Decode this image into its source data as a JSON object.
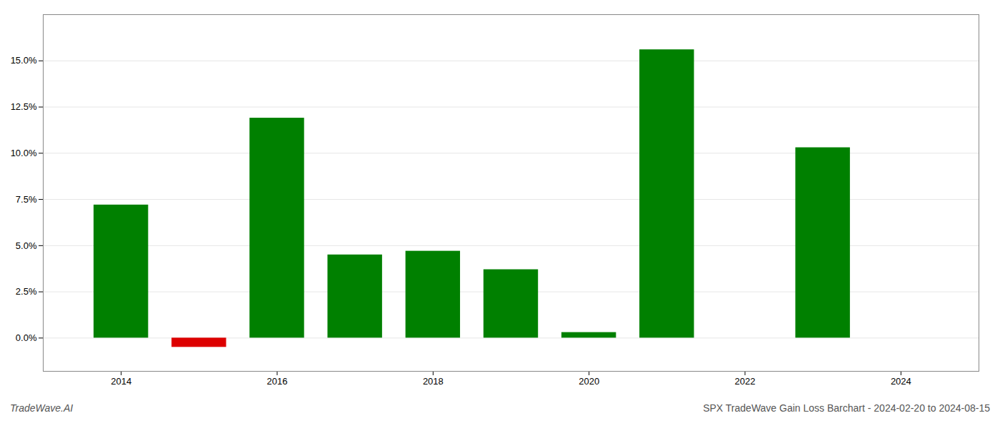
{
  "chart_data": {
    "type": "bar",
    "title": "SPX TradeWave Gain Loss Barchart - 2024-02-20 to 2024-08-15",
    "annotations": [
      "TradeWave.AI"
    ],
    "x": [
      2014,
      2015,
      2016,
      2017,
      2018,
      2019,
      2020,
      2021,
      2022,
      2023,
      2024
    ],
    "values": [
      0.072,
      -0.005,
      0.119,
      0.045,
      0.047,
      0.037,
      0.003,
      0.156,
      0.0,
      0.103,
      0.0
    ],
    "colors": [
      "#008000",
      "#dd0000",
      "#008000",
      "#008000",
      "#008000",
      "#008000",
      "#008000",
      "#008000",
      "#008000",
      "#008000",
      "#008000"
    ],
    "xlim": [
      2013.0,
      2025.0
    ],
    "xticks": [
      2014,
      2016,
      2018,
      2020,
      2022,
      2024
    ],
    "ylim": [
      -0.018,
      0.175
    ],
    "yticks": [
      {
        "value": 0.0,
        "label": "0.0%"
      },
      {
        "value": 0.025,
        "label": "2.5%"
      },
      {
        "value": 0.05,
        "label": "5.0%"
      },
      {
        "value": 0.075,
        "label": "7.5%"
      },
      {
        "value": 0.1,
        "label": "10.0%"
      },
      {
        "value": 0.125,
        "label": "12.5%"
      },
      {
        "value": 0.15,
        "label": "15.0%"
      }
    ],
    "grid": true
  }
}
